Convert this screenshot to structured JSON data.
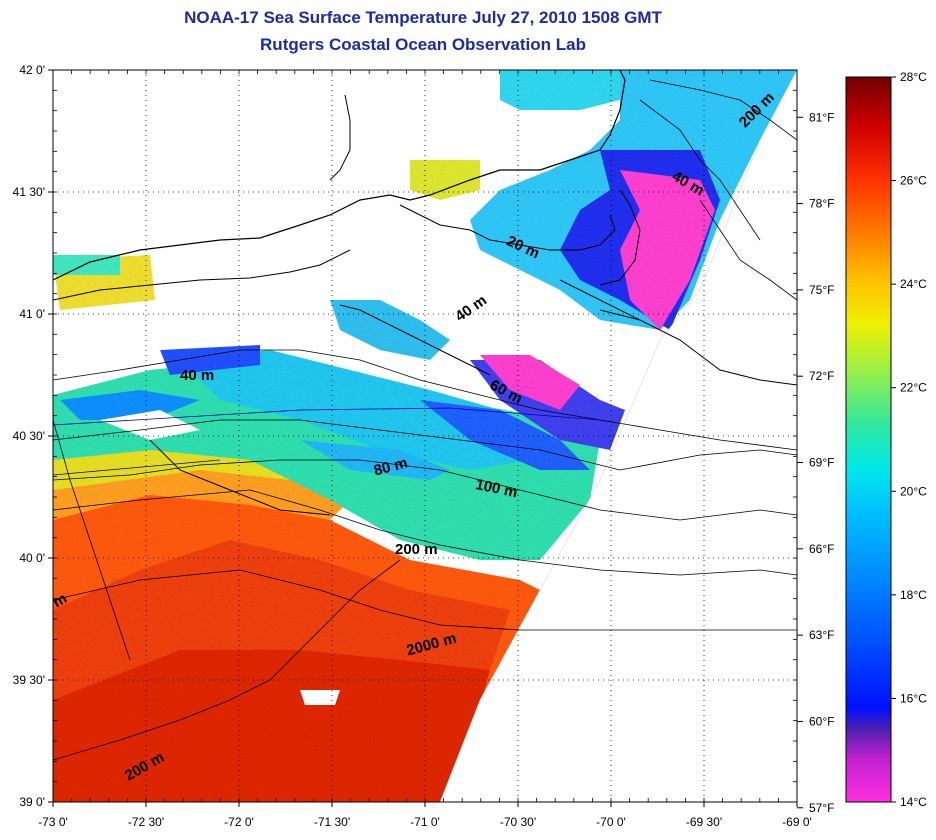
{
  "titles": {
    "line1": "NOAA-17 Sea Surface Temperature July 27, 2010 1508 GMT",
    "line2": "Rutgers Coastal Ocean Observation Lab"
  },
  "map": {
    "lon_ticks": [
      "-73 0'",
      "-72 30'",
      "-72 0'",
      "-71 30'",
      "-71 0'",
      "-70 30'",
      "-70 0'",
      "-69 30'",
      "-69 0'"
    ],
    "lat_ticks": [
      "42 0'",
      "41 30'",
      "41 0'",
      "40 30'",
      "40 0'",
      "39 30'",
      "39 0'"
    ],
    "lon_range": [
      -73,
      -69
    ],
    "lat_range": [
      39,
      42
    ],
    "fahrenheit_ticks": [
      "81°F",
      "78°F",
      "75°F",
      "72°F",
      "69°F",
      "66°F",
      "63°F",
      "60°F",
      "57°F"
    ],
    "contour_labels": [
      "200 m",
      "40 m",
      "20 m",
      "40 m",
      "40 m",
      "60 m",
      "80 m",
      "100 m",
      "200 m",
      "2000 m",
      "200 m",
      "m"
    ]
  },
  "colorbar": {
    "celsius_ticks": [
      "28°C",
      "26°C",
      "24°C",
      "22°C",
      "20°C",
      "18°C",
      "16°C",
      "14°C"
    ],
    "range_c": [
      14,
      28
    ],
    "colors": [
      "#ff40d0",
      "#9020c0",
      "#0020ff",
      "#0090ff",
      "#00e0e0",
      "#20e0a0",
      "#c0f020",
      "#ffe000",
      "#ffa000",
      "#ff5000",
      "#e01000",
      "#800000"
    ]
  }
}
